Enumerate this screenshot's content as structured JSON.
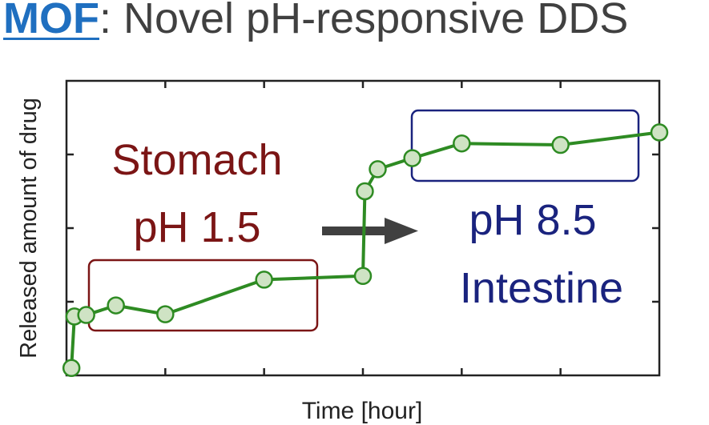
{
  "title": {
    "highlight": "MOF",
    "rest": ": Novel pH-responsive DDS"
  },
  "chart_data": {
    "type": "line",
    "xlabel": "Time [hour]",
    "ylabel": "Released amount of drug",
    "xlim": [
      0,
      6
    ],
    "ylim": [
      0,
      4
    ],
    "grid": false,
    "series": [
      {
        "color": "#2e8b23",
        "marker_fill": "#cfe3c4",
        "x": [
          0.05,
          0.08,
          0.2,
          0.5,
          1.0,
          2.0,
          3.0,
          3.02,
          3.15,
          3.5,
          4.0,
          5.0,
          6.0
        ],
        "y": [
          0.1,
          0.8,
          0.82,
          0.95,
          0.83,
          1.3,
          1.35,
          2.5,
          2.8,
          2.95,
          3.15,
          3.13,
          3.3
        ]
      }
    ],
    "annotations": {
      "stomach": {
        "line1": "Stomach",
        "line2": "pH 1.5",
        "color": "#7b1515"
      },
      "intestine": {
        "line1": "pH 8.5",
        "line2": "Intestine",
        "color": "#1a237e"
      }
    }
  }
}
